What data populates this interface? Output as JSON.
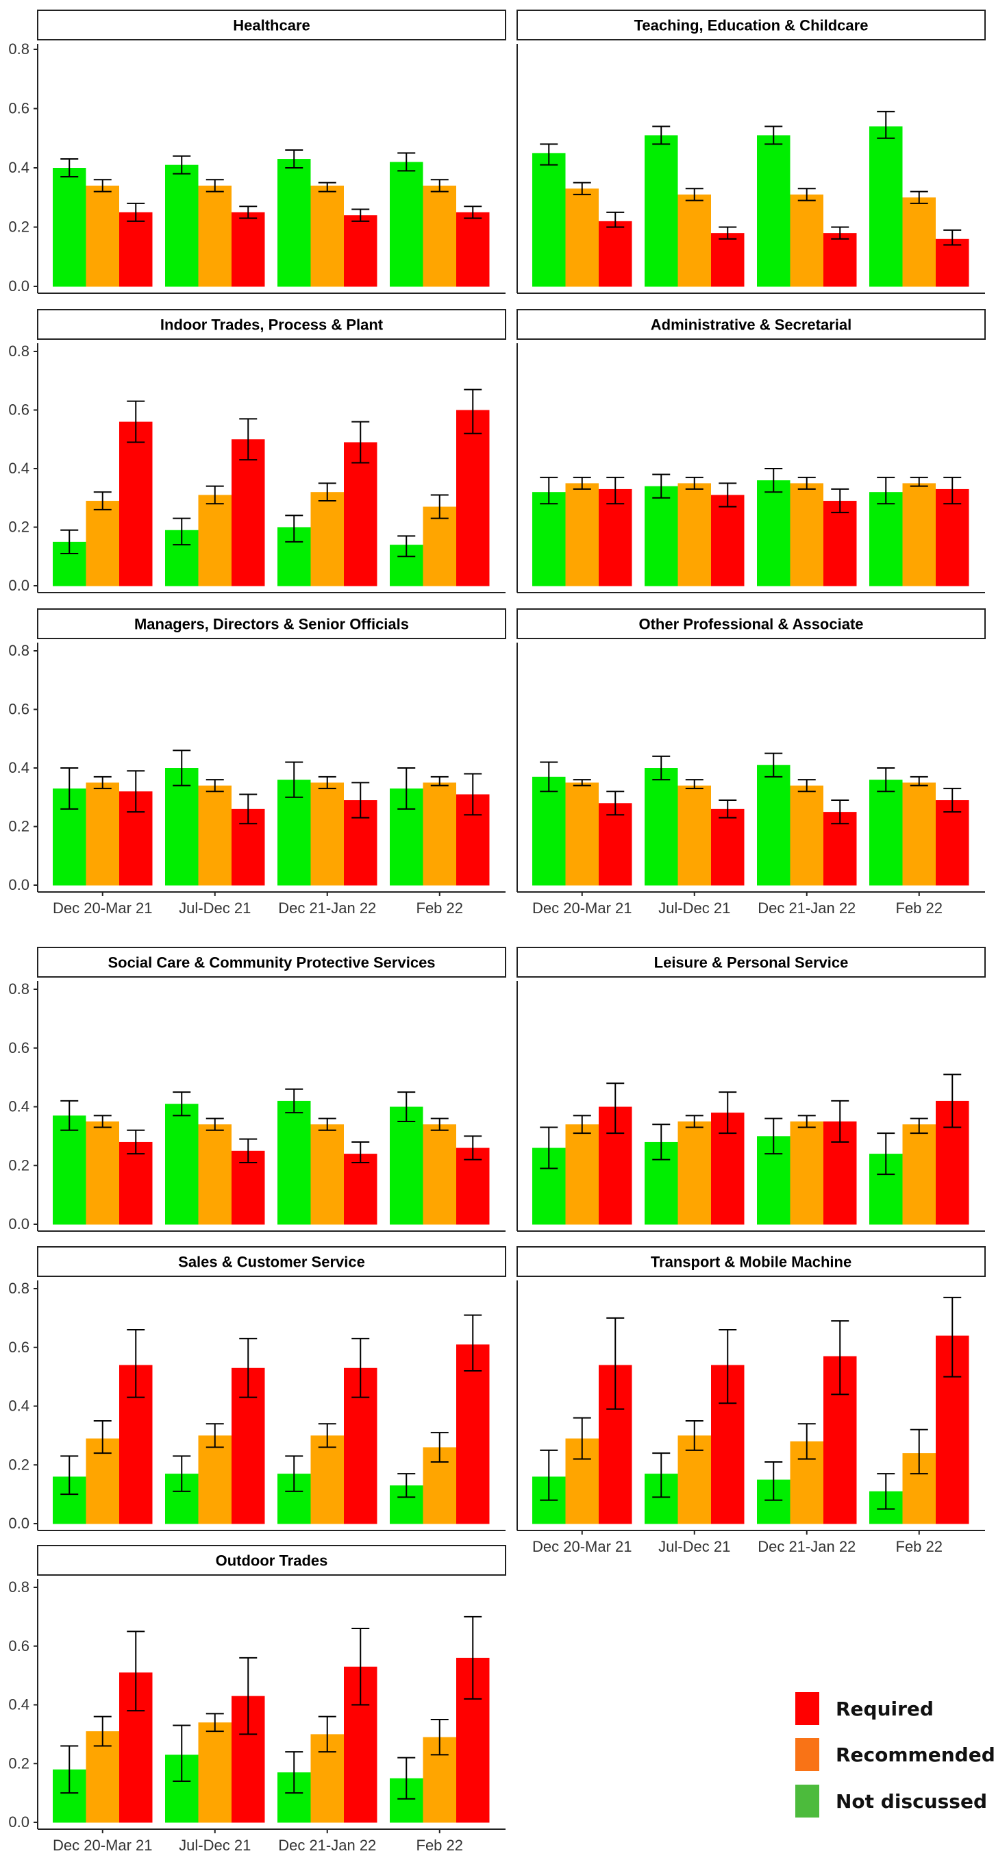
{
  "chart_data": {
    "type": "bar",
    "layout": "faceted grouped bar chart with error bars",
    "categories": [
      "Dec 20-Mar 21",
      "Jul-Dec 21",
      "Dec 21-Jan 22",
      "Feb 22"
    ],
    "series_names": [
      "Not discussed",
      "Recommended",
      "Required"
    ],
    "series_colors": {
      "Not discussed": "#00ee00",
      "Recommended": "#ffa500",
      "Required": "#ff0000"
    },
    "yticks": [
      "0.0",
      "0.2",
      "0.4",
      "0.6",
      "0.8"
    ],
    "ylim": [
      0,
      0.82
    ],
    "legend": {
      "position": "bottom-right",
      "items": [
        {
          "label": "Required",
          "color": "#ff0000"
        },
        {
          "label": "Recommended",
          "color": "#f97316"
        },
        {
          "label": "Not discussed",
          "color": "#4cbb3c"
        }
      ]
    },
    "panels": [
      {
        "title": "Healthcare",
        "series": [
          {
            "name": "Not discussed",
            "values": [
              0.4,
              0.41,
              0.43,
              0.42
            ],
            "lower": [
              0.37,
              0.38,
              0.4,
              0.39
            ],
            "upper": [
              0.43,
              0.44,
              0.46,
              0.45
            ]
          },
          {
            "name": "Recommended",
            "values": [
              0.34,
              0.34,
              0.34,
              0.34
            ],
            "lower": [
              0.32,
              0.32,
              0.32,
              0.32
            ],
            "upper": [
              0.36,
              0.36,
              0.35,
              0.36
            ]
          },
          {
            "name": "Required",
            "values": [
              0.25,
              0.25,
              0.24,
              0.25
            ],
            "lower": [
              0.22,
              0.23,
              0.22,
              0.23
            ],
            "upper": [
              0.28,
              0.27,
              0.26,
              0.27
            ]
          }
        ]
      },
      {
        "title": "Teaching, Education & Childcare",
        "series": [
          {
            "name": "Not discussed",
            "values": [
              0.45,
              0.51,
              0.51,
              0.54
            ],
            "lower": [
              0.41,
              0.48,
              0.48,
              0.5
            ],
            "upper": [
              0.48,
              0.54,
              0.54,
              0.59
            ]
          },
          {
            "name": "Recommended",
            "values": [
              0.33,
              0.31,
              0.31,
              0.3
            ],
            "lower": [
              0.31,
              0.29,
              0.29,
              0.28
            ],
            "upper": [
              0.35,
              0.33,
              0.33,
              0.32
            ]
          },
          {
            "name": "Required",
            "values": [
              0.22,
              0.18,
              0.18,
              0.16
            ],
            "lower": [
              0.2,
              0.16,
              0.16,
              0.14
            ],
            "upper": [
              0.25,
              0.2,
              0.2,
              0.19
            ]
          }
        ]
      },
      {
        "title": "Indoor Trades, Process & Plant",
        "series": [
          {
            "name": "Not discussed",
            "values": [
              0.15,
              0.19,
              0.2,
              0.14
            ],
            "lower": [
              0.11,
              0.14,
              0.15,
              0.1
            ],
            "upper": [
              0.19,
              0.23,
              0.24,
              0.17
            ]
          },
          {
            "name": "Recommended",
            "values": [
              0.29,
              0.31,
              0.32,
              0.27
            ],
            "lower": [
              0.26,
              0.28,
              0.29,
              0.23
            ],
            "upper": [
              0.32,
              0.34,
              0.35,
              0.31
            ]
          },
          {
            "name": "Required",
            "values": [
              0.56,
              0.5,
              0.49,
              0.6
            ],
            "lower": [
              0.49,
              0.43,
              0.42,
              0.52
            ],
            "upper": [
              0.63,
              0.57,
              0.56,
              0.67
            ]
          }
        ]
      },
      {
        "title": "Administrative & Secretarial",
        "series": [
          {
            "name": "Not discussed",
            "values": [
              0.32,
              0.34,
              0.36,
              0.32
            ],
            "lower": [
              0.28,
              0.3,
              0.32,
              0.28
            ],
            "upper": [
              0.37,
              0.38,
              0.4,
              0.37
            ]
          },
          {
            "name": "Recommended",
            "values": [
              0.35,
              0.35,
              0.35,
              0.35
            ],
            "lower": [
              0.33,
              0.33,
              0.33,
              0.34
            ],
            "upper": [
              0.37,
              0.37,
              0.37,
              0.37
            ]
          },
          {
            "name": "Required",
            "values": [
              0.33,
              0.31,
              0.29,
              0.33
            ],
            "lower": [
              0.28,
              0.27,
              0.25,
              0.28
            ],
            "upper": [
              0.37,
              0.35,
              0.33,
              0.37
            ]
          }
        ]
      },
      {
        "title": "Managers, Directors & Senior Officials",
        "series": [
          {
            "name": "Not discussed",
            "values": [
              0.33,
              0.4,
              0.36,
              0.33
            ],
            "lower": [
              0.26,
              0.34,
              0.3,
              0.26
            ],
            "upper": [
              0.4,
              0.46,
              0.42,
              0.4
            ]
          },
          {
            "name": "Recommended",
            "values": [
              0.35,
              0.34,
              0.35,
              0.35
            ],
            "lower": [
              0.33,
              0.32,
              0.33,
              0.34
            ],
            "upper": [
              0.37,
              0.36,
              0.37,
              0.37
            ]
          },
          {
            "name": "Required",
            "values": [
              0.32,
              0.26,
              0.29,
              0.31
            ],
            "lower": [
              0.25,
              0.21,
              0.23,
              0.24
            ],
            "upper": [
              0.39,
              0.31,
              0.35,
              0.38
            ]
          }
        ]
      },
      {
        "title": "Other Professional & Associate",
        "series": [
          {
            "name": "Not discussed",
            "values": [
              0.37,
              0.4,
              0.41,
              0.36
            ],
            "lower": [
              0.32,
              0.36,
              0.37,
              0.32
            ],
            "upper": [
              0.42,
              0.44,
              0.45,
              0.4
            ]
          },
          {
            "name": "Recommended",
            "values": [
              0.35,
              0.34,
              0.34,
              0.35
            ],
            "lower": [
              0.34,
              0.33,
              0.32,
              0.34
            ],
            "upper": [
              0.36,
              0.36,
              0.36,
              0.37
            ]
          },
          {
            "name": "Required",
            "values": [
              0.28,
              0.26,
              0.25,
              0.29
            ],
            "lower": [
              0.24,
              0.23,
              0.21,
              0.25
            ],
            "upper": [
              0.32,
              0.29,
              0.29,
              0.33
            ]
          }
        ]
      },
      {
        "title": "Social Care & Community Protective Services",
        "series": [
          {
            "name": "Not discussed",
            "values": [
              0.37,
              0.41,
              0.42,
              0.4
            ],
            "lower": [
              0.32,
              0.37,
              0.38,
              0.35
            ],
            "upper": [
              0.42,
              0.45,
              0.46,
              0.45
            ]
          },
          {
            "name": "Recommended",
            "values": [
              0.35,
              0.34,
              0.34,
              0.34
            ],
            "lower": [
              0.33,
              0.32,
              0.32,
              0.32
            ],
            "upper": [
              0.37,
              0.36,
              0.36,
              0.36
            ]
          },
          {
            "name": "Required",
            "values": [
              0.28,
              0.25,
              0.24,
              0.26
            ],
            "lower": [
              0.24,
              0.21,
              0.21,
              0.22
            ],
            "upper": [
              0.32,
              0.29,
              0.28,
              0.3
            ]
          }
        ]
      },
      {
        "title": "Leisure & Personal Service",
        "series": [
          {
            "name": "Not discussed",
            "values": [
              0.26,
              0.28,
              0.3,
              0.24
            ],
            "lower": [
              0.19,
              0.22,
              0.24,
              0.17
            ],
            "upper": [
              0.33,
              0.34,
              0.36,
              0.31
            ]
          },
          {
            "name": "Recommended",
            "values": [
              0.34,
              0.35,
              0.35,
              0.34
            ],
            "lower": [
              0.31,
              0.33,
              0.33,
              0.31
            ],
            "upper": [
              0.37,
              0.37,
              0.37,
              0.36
            ]
          },
          {
            "name": "Required",
            "values": [
              0.4,
              0.38,
              0.35,
              0.42
            ],
            "lower": [
              0.31,
              0.31,
              0.28,
              0.33
            ],
            "upper": [
              0.48,
              0.45,
              0.42,
              0.51
            ]
          }
        ]
      },
      {
        "title": "Sales & Customer Service",
        "series": [
          {
            "name": "Not discussed",
            "values": [
              0.16,
              0.17,
              0.17,
              0.13
            ],
            "lower": [
              0.1,
              0.11,
              0.11,
              0.09
            ],
            "upper": [
              0.23,
              0.23,
              0.23,
              0.17
            ]
          },
          {
            "name": "Recommended",
            "values": [
              0.29,
              0.3,
              0.3,
              0.26
            ],
            "lower": [
              0.24,
              0.26,
              0.26,
              0.21
            ],
            "upper": [
              0.35,
              0.34,
              0.34,
              0.31
            ]
          },
          {
            "name": "Required",
            "values": [
              0.54,
              0.53,
              0.53,
              0.61
            ],
            "lower": [
              0.43,
              0.43,
              0.43,
              0.52
            ],
            "upper": [
              0.66,
              0.63,
              0.63,
              0.71
            ]
          }
        ]
      },
      {
        "title": "Transport & Mobile Machine",
        "series": [
          {
            "name": "Not discussed",
            "values": [
              0.16,
              0.17,
              0.15,
              0.11
            ],
            "lower": [
              0.08,
              0.09,
              0.08,
              0.05
            ],
            "upper": [
              0.25,
              0.24,
              0.21,
              0.17
            ]
          },
          {
            "name": "Recommended",
            "values": [
              0.29,
              0.3,
              0.28,
              0.24
            ],
            "lower": [
              0.22,
              0.25,
              0.22,
              0.17
            ],
            "upper": [
              0.36,
              0.35,
              0.34,
              0.32
            ]
          },
          {
            "name": "Required",
            "values": [
              0.54,
              0.54,
              0.57,
              0.64
            ],
            "lower": [
              0.39,
              0.41,
              0.44,
              0.5
            ],
            "upper": [
              0.7,
              0.66,
              0.69,
              0.77
            ]
          }
        ]
      },
      {
        "title": "Outdoor Trades",
        "series": [
          {
            "name": "Not discussed",
            "values": [
              0.18,
              0.23,
              0.17,
              0.15
            ],
            "lower": [
              0.1,
              0.14,
              0.1,
              0.08
            ],
            "upper": [
              0.26,
              0.33,
              0.24,
              0.22
            ]
          },
          {
            "name": "Recommended",
            "values": [
              0.31,
              0.34,
              0.3,
              0.29
            ],
            "lower": [
              0.26,
              0.31,
              0.24,
              0.23
            ],
            "upper": [
              0.36,
              0.37,
              0.36,
              0.35
            ]
          },
          {
            "name": "Required",
            "values": [
              0.51,
              0.43,
              0.53,
              0.56
            ],
            "lower": [
              0.38,
              0.3,
              0.4,
              0.42
            ],
            "upper": [
              0.65,
              0.56,
              0.66,
              0.7
            ]
          }
        ]
      }
    ]
  }
}
